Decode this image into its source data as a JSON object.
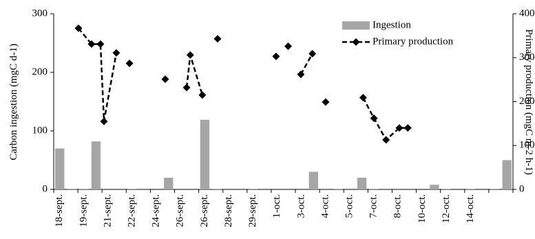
{
  "chart_data": {
    "type": "bar-line",
    "y_label": "Carbon ingestion (mgC d-1)",
    "y2_label": "Primary production (mgC m-2 h-1)",
    "categories": [
      "18-sept.",
      null,
      "19-sept.",
      null,
      "21-sept.",
      null,
      "22-sept.",
      null,
      "24-sept.",
      null,
      "26-sept.",
      null,
      "26-sept.",
      null,
      "28-sept.",
      null,
      "29-sept.",
      null,
      "1-oct.",
      null,
      "3-oct.",
      null,
      "4-oct.",
      null,
      "5-oct.",
      null,
      "7-oct.",
      null,
      "8-oct.",
      null,
      "10-oct.",
      null,
      "12-oct.",
      null,
      "14-oct.",
      null,
      null,
      null
    ],
    "series": [
      {
        "name": "Ingestion",
        "type": "bar",
        "color": "#a6a6a6",
        "values": [
          70,
          1,
          1,
          82,
          0,
          0,
          1,
          0,
          0,
          20,
          0,
          0,
          119,
          1,
          0,
          0,
          1,
          0,
          0,
          0,
          0,
          30,
          0,
          1,
          0,
          20,
          1,
          0,
          0,
          0,
          0,
          8,
          1,
          0,
          1,
          0,
          1,
          50
        ]
      },
      {
        "name": "Primary production",
        "type": "line",
        "axis": "y2",
        "color": "#000000",
        "x": [
          1.55,
          2.63,
          3.37,
          3.66,
          4.68,
          null,
          5.77,
          null,
          8.73,
          null,
          10.5,
          10.8,
          11.8,
          null,
          13.06,
          null,
          17.9,
          null,
          18.9,
          null,
          19.95,
          20.9,
          null,
          22.0,
          null,
          25.1,
          26.0,
          27.0,
          28.1,
          28.8
        ],
        "values": [
          367,
          331,
          331,
          155,
          311,
          null,
          287,
          null,
          251,
          null,
          232,
          306,
          215,
          null,
          343,
          null,
          303,
          null,
          326,
          null,
          262,
          309,
          null,
          199,
          null,
          209,
          162,
          113,
          140,
          140
        ]
      }
    ],
    "ylim": [
      0,
      300
    ],
    "yticks": [
      0,
      100,
      200,
      300
    ],
    "y2lim": [
      0,
      400
    ],
    "y2ticks": [
      0,
      100,
      200,
      300,
      400
    ],
    "legend": "top-right"
  }
}
